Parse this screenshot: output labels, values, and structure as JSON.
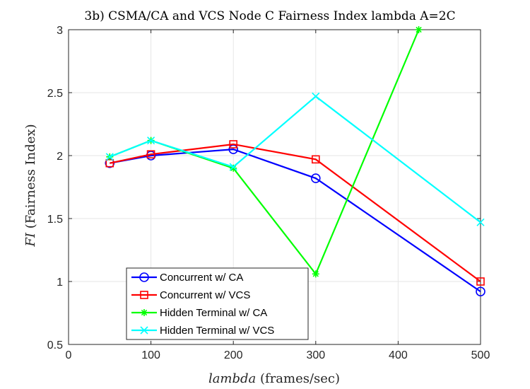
{
  "chart_data": {
    "type": "line",
    "title": "3b) CSMA/CA and VCS Node C Fairness Index lambda A=2C",
    "xlabel_italic": "lambda",
    "xlabel_rest": " (frames/sec)",
    "ylabel_italic": "FI",
    "ylabel_rest": " (Fairness Index)",
    "xlim": [
      0,
      500
    ],
    "ylim": [
      0.5,
      3
    ],
    "xticks": [
      0,
      100,
      200,
      300,
      400,
      500
    ],
    "yticks": [
      0.5,
      1,
      1.5,
      2,
      2.5,
      3
    ],
    "grid": true,
    "legend_position": "bottom-left",
    "series": [
      {
        "name": "Concurrent w/ CA",
        "color": "#0000ff",
        "marker": "circle",
        "x": [
          50,
          100,
          200,
          300,
          500
        ],
        "y": [
          1.94,
          2.0,
          2.05,
          1.82,
          0.92
        ]
      },
      {
        "name": "Concurrent w/ VCS",
        "color": "#ff0000",
        "marker": "square",
        "x": [
          50,
          100,
          200,
          300,
          500
        ],
        "y": [
          1.94,
          2.01,
          2.09,
          1.97,
          1.0
        ]
      },
      {
        "name": "Hidden Terminal w/ CA",
        "color": "#00ff00",
        "marker": "asterisk",
        "x": [
          50,
          100,
          200,
          300,
          425
        ],
        "y": [
          1.99,
          2.12,
          1.9,
          1.06,
          3.0
        ]
      },
      {
        "name": "Hidden Terminal w/ VCS",
        "color": "#00ffff",
        "marker": "x",
        "x": [
          50,
          100,
          200,
          300,
          500
        ],
        "y": [
          1.99,
          2.12,
          1.91,
          2.47,
          1.47
        ]
      }
    ]
  }
}
